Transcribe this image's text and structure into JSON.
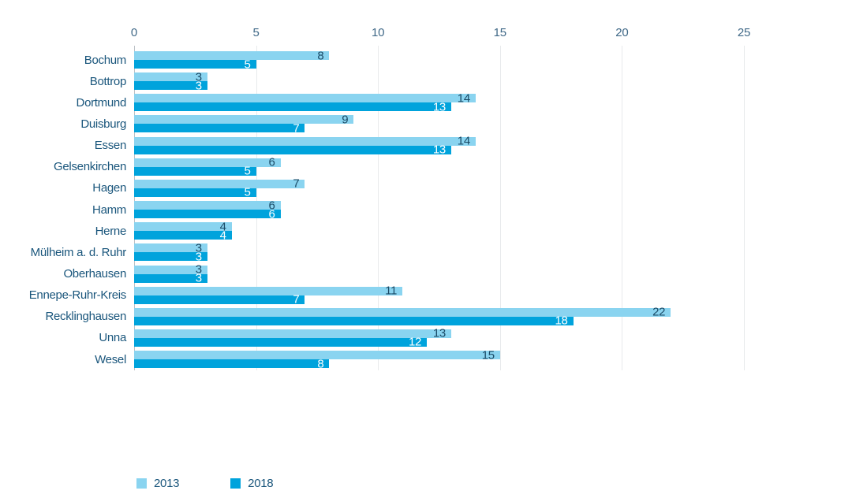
{
  "chart_data": {
    "type": "bar",
    "orientation": "horizontal",
    "title": "",
    "xlabel": "",
    "ylabel": "",
    "categories": [
      "Bochum",
      "Bottrop",
      "Dortmund",
      "Duisburg",
      "Essen",
      "Gelsenkirchen",
      "Hagen",
      "Hamm",
      "Herne",
      "Mülheim a. d. Ruhr",
      "Oberhausen",
      "Ennepe-Ruhr-Kreis",
      "Recklinghausen",
      "Unna",
      "Wesel"
    ],
    "series": [
      {
        "name": "2013",
        "color": "#8AD4F0",
        "value_label_color": "#1A4A66",
        "values": [
          8,
          3,
          14,
          9,
          14,
          6,
          7,
          6,
          4,
          3,
          3,
          11,
          22,
          13,
          15
        ]
      },
      {
        "name": "2018",
        "color": "#00A3DC",
        "value_label_color": "#FFFFFF",
        "values": [
          5,
          3,
          13,
          7,
          13,
          5,
          5,
          6,
          4,
          3,
          3,
          7,
          18,
          12,
          8
        ]
      }
    ],
    "x_ticks": [
      "0",
      "5",
      "10",
      "15",
      "20",
      "25"
    ],
    "xlim": [
      0,
      25
    ],
    "grid": "vertical",
    "axis_position": "top",
    "value_labels": "inside-end",
    "legend_position": "bottom-left"
  }
}
